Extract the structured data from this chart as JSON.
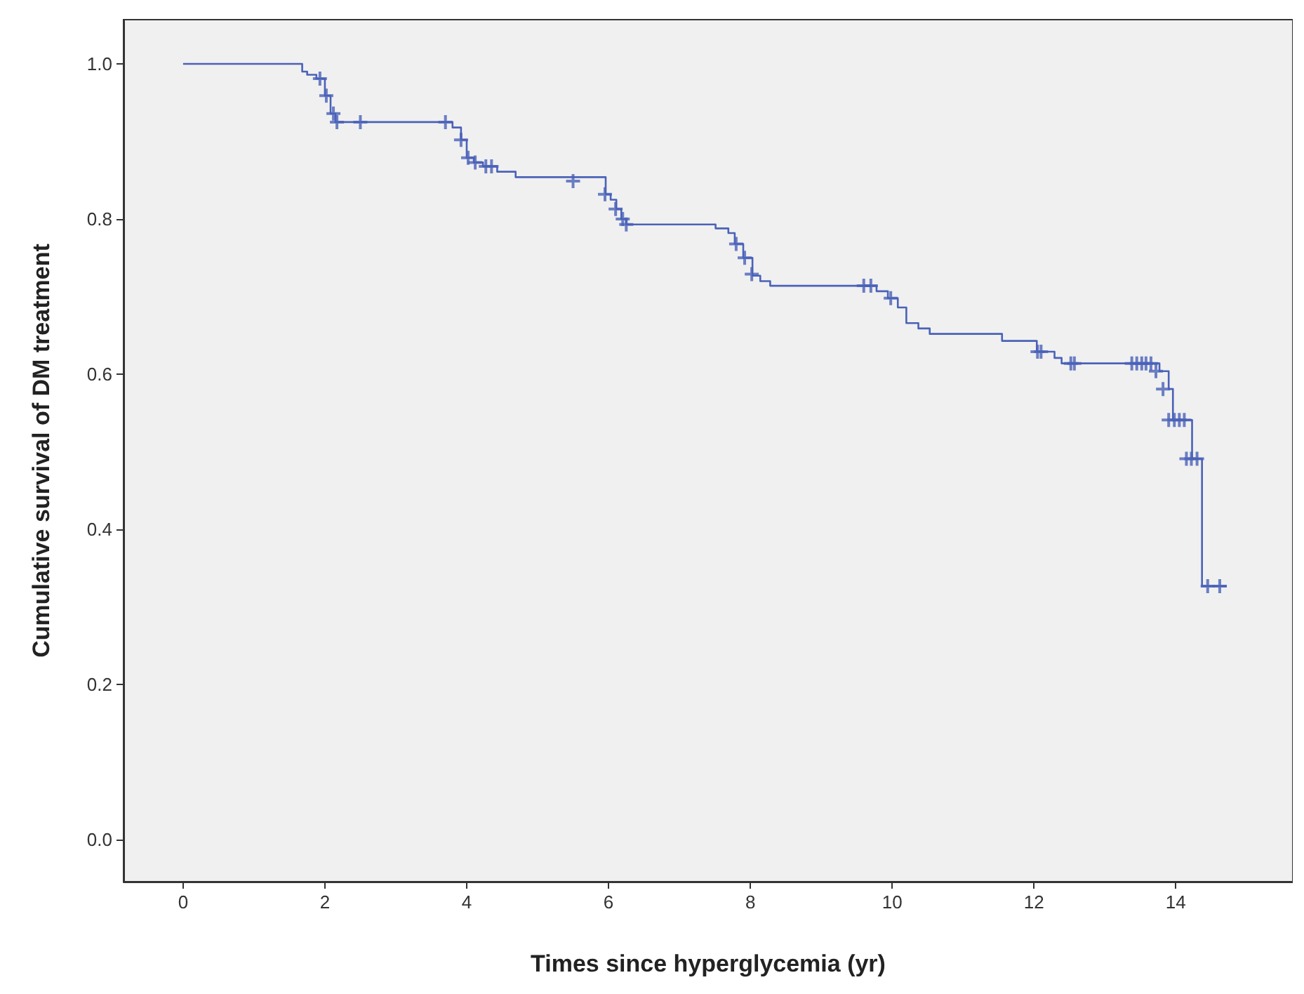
{
  "chart_data": {
    "type": "step",
    "xlabel": "Times since hyperglycemia (yr)",
    "ylabel": "Cumulative survival of DM treatment",
    "xlim": [
      -0.84,
      15.65
    ],
    "ylim": [
      -0.054,
      1.057
    ],
    "xticks": [
      0,
      2,
      4,
      6,
      8,
      10,
      12,
      14
    ],
    "yticks": [
      {
        "value": 0,
        "label": "0.0"
      },
      0.2,
      0.4,
      0.6,
      0.8,
      {
        "value": 1,
        "label": "1.0"
      }
    ],
    "series": [
      {
        "type": "step",
        "color": "#4a62b8",
        "marker": "none",
        "x": [
          0,
          1.68,
          1.75,
          1.88,
          2.0,
          2.08,
          2.15,
          3.8,
          3.92,
          4.0,
          4.1,
          4.23,
          4.43,
          4.69,
          5.96,
          6.03,
          6.11,
          6.18,
          6.25,
          7.51,
          7.69,
          7.78,
          7.9,
          8.03,
          8.14,
          8.28,
          9.78,
          9.94,
          10.08,
          10.2,
          10.37,
          10.53,
          11.55,
          12.04,
          12.29,
          12.39,
          13.77,
          13.9,
          13.96,
          14.23,
          14.37,
          14.72
        ],
        "values": [
          1.0,
          0.99,
          0.986,
          0.981,
          0.959,
          0.936,
          0.925,
          0.918,
          0.902,
          0.879,
          0.873,
          0.868,
          0.861,
          0.854,
          0.832,
          0.825,
          0.813,
          0.8,
          0.793,
          0.788,
          0.782,
          0.768,
          0.75,
          0.727,
          0.72,
          0.714,
          0.707,
          0.698,
          0.686,
          0.666,
          0.659,
          0.652,
          0.643,
          0.629,
          0.621,
          0.614,
          0.604,
          0.581,
          0.541,
          0.491,
          0.327,
          0.327
        ]
      },
      {
        "type": "scatter",
        "color": "#4a62b8",
        "marker": "cross",
        "x": [
          1.93,
          2.02,
          2.12,
          2.17,
          2.5,
          3.7,
          3.92,
          4.02,
          4.12,
          4.27,
          4.35,
          5.5,
          5.95,
          6.1,
          6.2,
          6.25,
          7.8,
          7.92,
          8.02,
          9.6,
          9.7,
          9.98,
          12.05,
          12.1,
          12.52,
          12.57,
          13.38,
          13.45,
          13.52,
          13.58,
          13.65,
          13.72,
          13.82,
          13.9,
          13.98,
          14.05,
          14.12,
          14.15,
          14.22,
          14.3,
          14.45,
          14.62
        ],
        "values": [
          0.981,
          0.959,
          0.936,
          0.925,
          0.925,
          0.925,
          0.902,
          0.879,
          0.873,
          0.868,
          0.868,
          0.849,
          0.832,
          0.813,
          0.8,
          0.793,
          0.768,
          0.75,
          0.729,
          0.714,
          0.714,
          0.698,
          0.629,
          0.629,
          0.614,
          0.614,
          0.614,
          0.614,
          0.614,
          0.614,
          0.614,
          0.604,
          0.581,
          0.541,
          0.541,
          0.541,
          0.541,
          0.491,
          0.491,
          0.491,
          0.327,
          0.327
        ]
      }
    ]
  }
}
